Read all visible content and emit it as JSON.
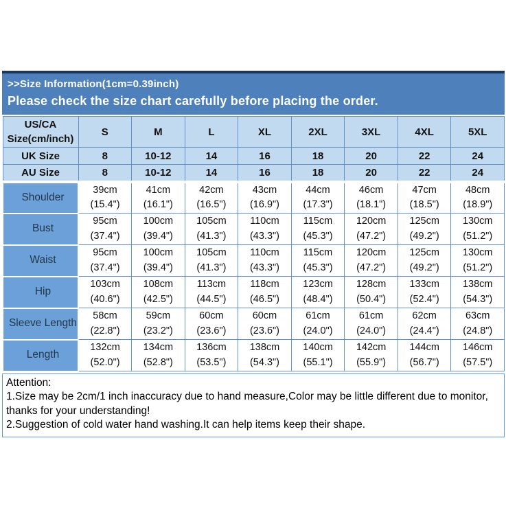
{
  "banner": {
    "line1": ">>Size Information(1cm=0.39inch)",
    "line2": "Please check the size chart carefully before placing the order."
  },
  "size_table": {
    "header": {
      "label_lines": [
        "US/CA",
        "Size(cm/inch)"
      ],
      "sizes": [
        "S",
        "M",
        "L",
        "XL",
        "2XL",
        "3XL",
        "4XL",
        "5XL"
      ]
    },
    "uk": {
      "label": "UK Size",
      "values": [
        "8",
        "10-12",
        "14",
        "16",
        "18",
        "20",
        "22",
        "24"
      ]
    },
    "au": {
      "label": "AU Size",
      "values": [
        "8",
        "10-12",
        "14",
        "16",
        "18",
        "20",
        "22",
        "24"
      ]
    },
    "measurements": [
      {
        "label": "Shoulder",
        "values": [
          [
            "39cm",
            "(15.4\")"
          ],
          [
            "41cm",
            "(16.1\")"
          ],
          [
            "42cm",
            "(16.5\")"
          ],
          [
            "43cm",
            "(16.9\")"
          ],
          [
            "44cm",
            "(17.3\")"
          ],
          [
            "46cm",
            "(18.1\")"
          ],
          [
            "47cm",
            "(18.5\")"
          ],
          [
            "48cm",
            "(18.9\")"
          ]
        ]
      },
      {
        "label": "Bust",
        "values": [
          [
            "95cm",
            "(37.4\")"
          ],
          [
            "100cm",
            "(39.4\")"
          ],
          [
            "105cm",
            "(41.3\")"
          ],
          [
            "110cm",
            "(43.3\")"
          ],
          [
            "115cm",
            "(45.3\")"
          ],
          [
            "120cm",
            "(47.2\")"
          ],
          [
            "125cm",
            "(49.2\")"
          ],
          [
            "130cm",
            "(51.2\")"
          ]
        ]
      },
      {
        "label": "Waist",
        "values": [
          [
            "95cm",
            "(37.4\")"
          ],
          [
            "100cm",
            "(39.4\")"
          ],
          [
            "105cm",
            "(41.3\")"
          ],
          [
            "110cm",
            "(43.3\")"
          ],
          [
            "115cm",
            "(45.3\")"
          ],
          [
            "120cm",
            "(47.2\")"
          ],
          [
            "125cm",
            "(49.2\")"
          ],
          [
            "130cm",
            "(51.2\")"
          ]
        ]
      },
      {
        "label": "Hip",
        "values": [
          [
            "103cm",
            "(40.6\")"
          ],
          [
            "108cm",
            "(42.5\")"
          ],
          [
            "113cm",
            "(44.5\")"
          ],
          [
            "118cm",
            "(46.5\")"
          ],
          [
            "123cm",
            "(48.4\")"
          ],
          [
            "128cm",
            "(50.4\")"
          ],
          [
            "133cm",
            "(52.4\")"
          ],
          [
            "138cm",
            "(54.3\")"
          ]
        ]
      },
      {
        "label": "Sleeve Length",
        "values": [
          [
            "58cm",
            "(22.8\")"
          ],
          [
            "59cm",
            "(23.2\")"
          ],
          [
            "60cm",
            "(23.6\")"
          ],
          [
            "60cm",
            "(23.6\")"
          ],
          [
            "61cm",
            "(24.0\")"
          ],
          [
            "61cm",
            "(24.0\")"
          ],
          [
            "62cm",
            "(24.4\")"
          ],
          [
            "63cm",
            "(24.8\")"
          ]
        ]
      },
      {
        "label": "Length",
        "values": [
          [
            "132cm",
            "(52.0\")"
          ],
          [
            "134cm",
            "(52.8\")"
          ],
          [
            "136cm",
            "(53.5\")"
          ],
          [
            "138cm",
            "(54.3\")"
          ],
          [
            "140cm",
            "(55.1\")"
          ],
          [
            "142cm",
            "(55.9\")"
          ],
          [
            "144cm",
            "(56.7\")"
          ],
          [
            "146cm",
            "(57.5\")"
          ]
        ]
      }
    ]
  },
  "attention": {
    "title": "Attention:",
    "items": [
      "1.Size may be 2cm/1 inch inaccuracy due to hand measure,Color may be little different due to monitor, thanks for your understanding!",
      "2.Suggestion of cold water hand washing.It can help items keep their shape."
    ]
  },
  "colors": {
    "banner_background": "#4e81bb",
    "banner_top_border": "#17375e",
    "banner_text": "#ffffff",
    "header_cell_background": "#c2daef",
    "label_cell_background": "#6ba1d8",
    "grid_line": "#6090c6",
    "body_cell_background": "#ffffff",
    "table_text": "#111111",
    "label_text": "#23364a",
    "attention_border": "#5b9bd5",
    "attention_text": "#000000"
  }
}
